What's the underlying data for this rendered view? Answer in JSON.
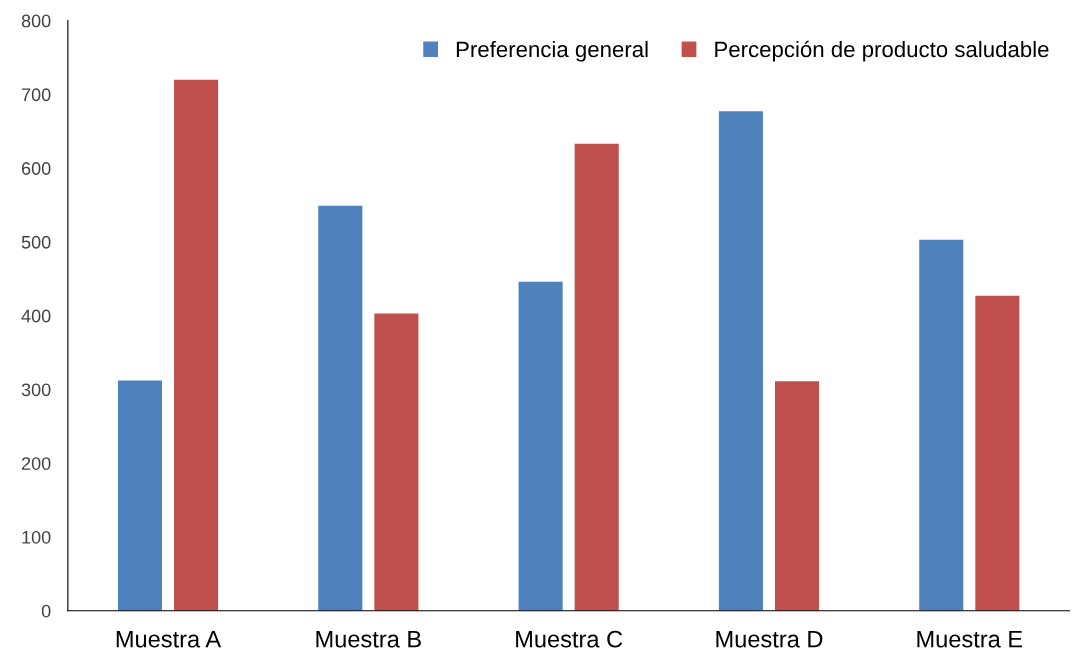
{
  "chart_data": {
    "type": "bar",
    "categories": [
      "Muestra A",
      "Muestra B",
      "Muestra C",
      "Muestra D",
      "Muestra E"
    ],
    "series": [
      {
        "name": "Preferencia general",
        "color": "#4f81bd",
        "values": [
          312,
          549,
          446,
          677,
          503
        ]
      },
      {
        "name": "Percepción de producto saludable",
        "color": "#c0504d",
        "values": [
          720,
          403,
          633,
          311,
          427
        ]
      }
    ],
    "ylim": [
      0,
      800
    ],
    "yticks": [
      0,
      100,
      200,
      300,
      400,
      500,
      600,
      700,
      800
    ],
    "grid": false,
    "legend": "top right"
  }
}
